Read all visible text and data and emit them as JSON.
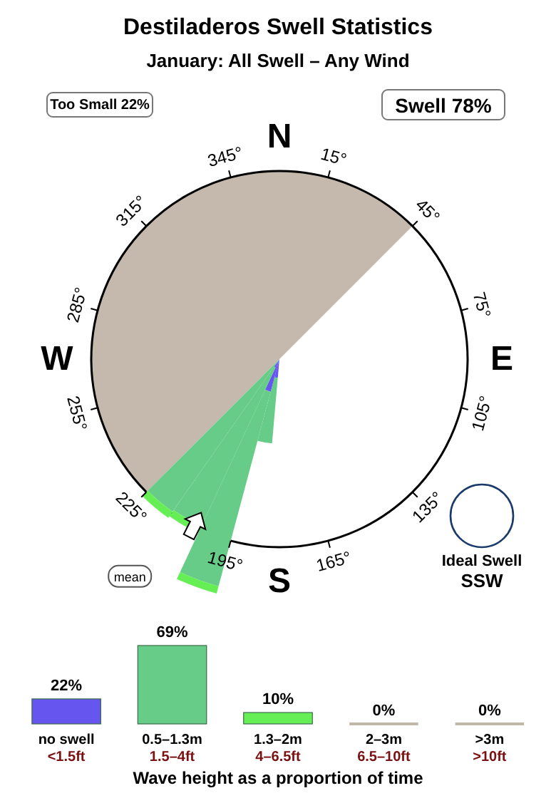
{
  "chart_data": [
    {
      "type": "other",
      "title": "Destiladeros Swell Statistics",
      "subtitle": "January: All Swell – Any Wind",
      "annotations": [
        "Too Small 22%",
        "Swell 78%",
        "mean",
        "Ideal Swell",
        "SSW",
        "N",
        "15°",
        "45°",
        "75°",
        "E",
        "105°",
        "135°",
        "165°",
        "S",
        "195°",
        "225°",
        "255°",
        "W",
        "285°",
        "315°",
        "345°"
      ]
    },
    {
      "type": "bar",
      "xlabel": "Wave height as a proportion of time",
      "categories": [
        "no swell",
        "0.5–1.3m",
        "1.3–2m",
        "2–3m",
        ">3m"
      ],
      "values": [
        22,
        69,
        10,
        0,
        0
      ],
      "colors": [
        "#6655ee",
        "#66cc88",
        "#66ee55",
        "#c0b8a8",
        "#c0b8a8"
      ],
      "value_labels": [
        "22%",
        "69%",
        "10%",
        "0%",
        "0%"
      ],
      "annotations": [
        "<1.5ft",
        "1.5–4ft",
        "4–6.5ft",
        "6.5–10ft",
        ">10ft"
      ]
    }
  ]
}
